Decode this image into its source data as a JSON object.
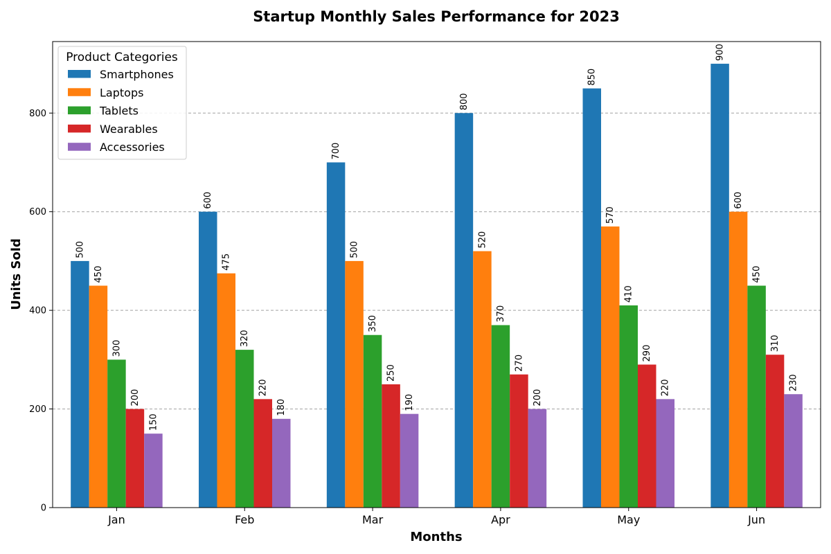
{
  "chart_data": {
    "type": "bar",
    "title": "Startup Monthly Sales Performance for 2023",
    "xlabel": "Months",
    "ylabel": "Units Sold",
    "categories": [
      "Jan",
      "Feb",
      "Mar",
      "Apr",
      "May",
      "Jun"
    ],
    "ylim": [
      0,
      945
    ],
    "yticks": [
      0,
      200,
      400,
      600,
      800
    ],
    "grid": "y-dashed",
    "legend": {
      "title": "Product Categories",
      "placement": "top-left"
    },
    "series": [
      {
        "name": "Smartphones",
        "color": "#1f77b4",
        "values": [
          500,
          600,
          700,
          800,
          850,
          900
        ]
      },
      {
        "name": "Laptops",
        "color": "#ff7f0e",
        "values": [
          450,
          475,
          500,
          520,
          570,
          600
        ]
      },
      {
        "name": "Tablets",
        "color": "#2ca02c",
        "values": [
          300,
          320,
          350,
          370,
          410,
          450
        ]
      },
      {
        "name": "Wearables",
        "color": "#d62728",
        "values": [
          200,
          220,
          250,
          270,
          290,
          310
        ]
      },
      {
        "name": "Accessories",
        "color": "#9467bd",
        "values": [
          150,
          180,
          190,
          200,
          220,
          230
        ]
      }
    ]
  }
}
